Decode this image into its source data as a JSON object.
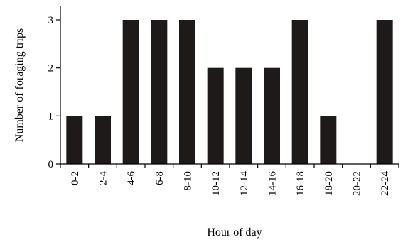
{
  "chart_data": {
    "type": "bar",
    "title": "",
    "xlabel": "Hour of day",
    "ylabel": "Number of foraging trips",
    "categories": [
      "0-2",
      "2-4",
      "4-6",
      "6-8",
      "8-10",
      "10-12",
      "12-14",
      "14-16",
      "16-18",
      "18-20",
      "20-22",
      "22-24"
    ],
    "values": [
      1,
      1,
      3,
      3,
      3,
      2,
      2,
      2,
      3,
      1,
      0,
      3
    ],
    "ylim": [
      0,
      3
    ],
    "yticks": [
      "0",
      "1",
      "2",
      "3"
    ],
    "grid": false,
    "legend": "none",
    "bar_color": "#1f1a1a"
  }
}
